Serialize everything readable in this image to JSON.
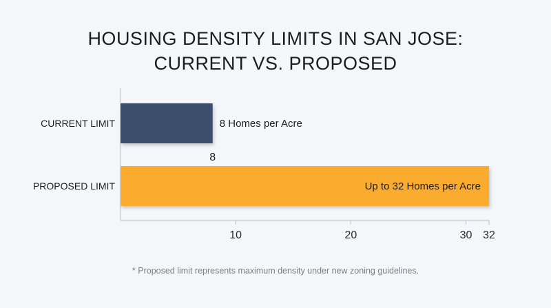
{
  "chart_data": {
    "type": "bar",
    "orientation": "horizontal",
    "title": [
      "HOUSING DENSITY LIMITS IN SAN JOSE:",
      "CURRENT VS. PROPOSED"
    ],
    "categories": [
      "CURRENT LIMIT",
      "PROPOSED LIMIT"
    ],
    "values": [
      8,
      32
    ],
    "bar_labels": [
      "8 Homes per Acre",
      "Up to 32 Homes per Acre"
    ],
    "value_labels": [
      "8",
      ""
    ],
    "colors": [
      "#3d4d6c",
      "#fbab2d"
    ],
    "xticks": [
      10,
      20,
      30,
      32
    ],
    "xlim": [
      0,
      32
    ],
    "grid": false,
    "footnote": "* Proposed limit represents maximum density under new zoning guidelines."
  }
}
